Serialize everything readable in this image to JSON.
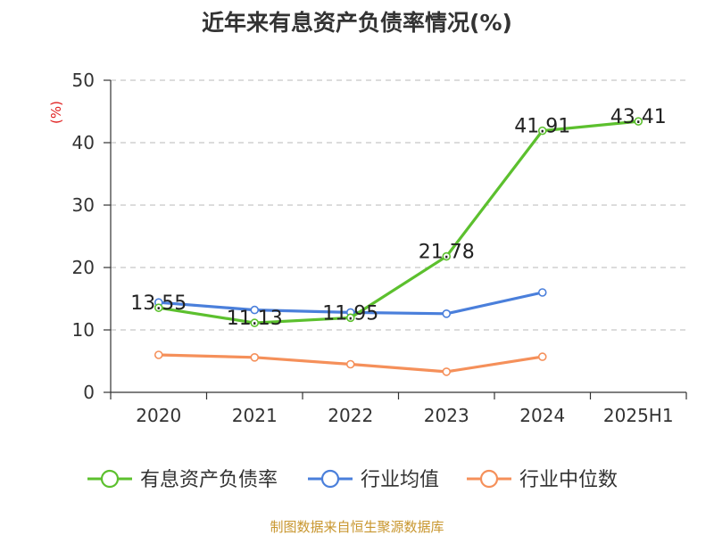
{
  "chart_data": {
    "type": "line",
    "title": "近年来有息资产负债率情况(%)",
    "ylabel": "(%)",
    "xlabel": "",
    "categories": [
      "2020",
      "2021",
      "2022",
      "2023",
      "2024",
      "2025H1"
    ],
    "ylim": [
      0,
      50
    ],
    "yticks": [
      0,
      10,
      20,
      30,
      40,
      50
    ],
    "grid": true,
    "legend_position": "bottom",
    "series": [
      {
        "name": "有息资产负债率",
        "color": "#5cc02e",
        "values": [
          13.55,
          11.13,
          11.95,
          21.78,
          41.91,
          43.41
        ],
        "labels": [
          "13.55",
          "11.13",
          "11.95",
          "21.78",
          "41.91",
          "43.41"
        ]
      },
      {
        "name": "行业均值",
        "color": "#4a7fdb",
        "values": [
          14.4,
          13.2,
          12.8,
          12.6,
          16.0,
          null
        ]
      },
      {
        "name": "行业中位数",
        "color": "#f5905a",
        "values": [
          6.0,
          5.6,
          4.5,
          3.3,
          5.7,
          null
        ]
      }
    ]
  },
  "footer": {
    "source": "制图数据来自恒生聚源数据库",
    "source_color": "#c8962e"
  }
}
